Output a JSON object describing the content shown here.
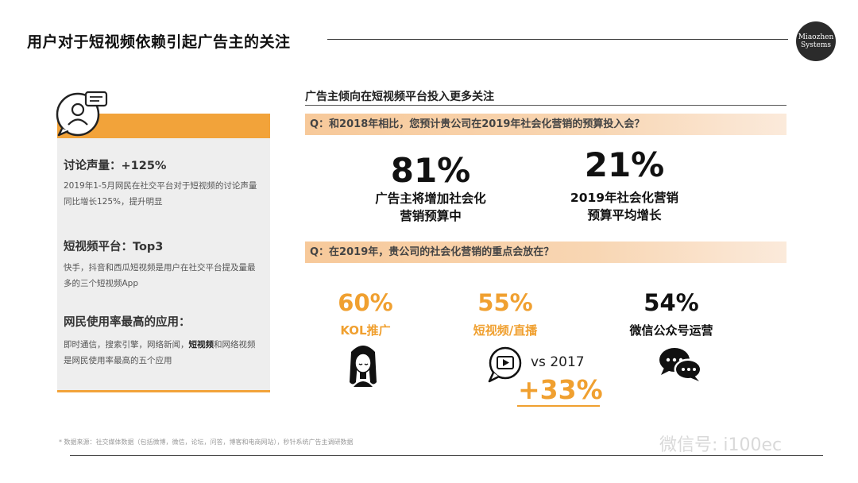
{
  "header": {
    "title": "用户对于短视频依赖引起广告主的关注",
    "logo_line1": "Miaozhen",
    "logo_line2": "Systems"
  },
  "left_panel": {
    "icon": "chat-bubble-person-icon",
    "items": [
      {
        "heading": "讨论声量：+125%",
        "desc": "2019年1-5月网民在社交平台对于短视频的讨论声量同比增长125%，提升明显"
      },
      {
        "heading": "短视频平台：Top3",
        "desc": "快手，抖音和西瓜短视频是用户在社交平台提及量最多的三个短视频App"
      },
      {
        "heading": "网民使用率最高的应用：",
        "desc_pre": "即时通信，搜索引擎，网络新闻，",
        "desc_bold": "短视频",
        "desc_post": "和网络视频是网民使用率最高的五个应用"
      }
    ]
  },
  "right_panel": {
    "section_title": "广告主倾向在短视频平台投入更多关注",
    "q1": "Q：和2018年相比，您预计贵公司在2019年社会化营销的预算投入会？",
    "q1_stats": [
      {
        "value": "81%",
        "label_line1": "广告主将增加社会化",
        "label_line2": "营销预算中"
      },
      {
        "value": "21%",
        "label_line1": "2019年社会化营销",
        "label_line2": "预算平均增长"
      }
    ],
    "q2": "Q：在2019年，贵公司的社会化营销的重点会放在？",
    "q2_stats": [
      {
        "value": "60%",
        "label": "KOL推广",
        "icon": "kol-person-icon"
      },
      {
        "value": "55%",
        "label": "短视频/直播",
        "icon": "video-chat-icon"
      },
      {
        "value": "54%",
        "label": "微信公众号运营",
        "icon": "wechat-bubbles-icon"
      }
    ],
    "vs_label": "vs 2017",
    "growth": "+33%"
  },
  "footer": {
    "note": "*   数据来源：社交媒体数据（包括微博，微信，论坛，问答，博客和电商网站），秒针系统广告主调研数据",
    "watermark": "微信号: i100ec"
  },
  "colors": {
    "accent": "#f2a33a",
    "band": "#f8d0a8",
    "card": "#eeeeee"
  }
}
